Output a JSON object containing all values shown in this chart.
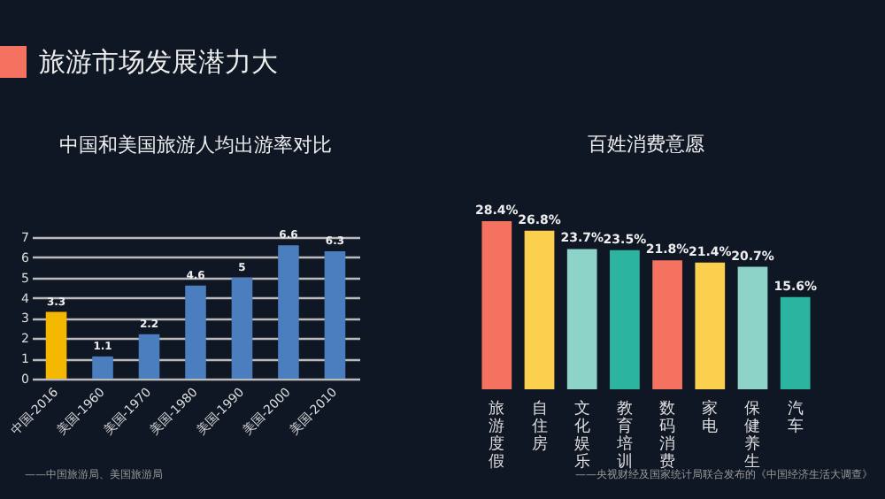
{
  "chart_data": [
    {
      "type": "other",
      "title": "旅游市场发展潜力大"
    },
    {
      "type": "bar",
      "title": "中国和美国旅游人均出游率对比",
      "categories": [
        "中国-2016",
        "美国-1960",
        "美国-1970",
        "美国-1980",
        "美国-1990",
        "美国-2000",
        "美国-2010"
      ],
      "values": [
        3.3,
        1.1,
        2.2,
        4.6,
        5,
        6.6,
        6.3
      ],
      "colors": [
        "#f5b800",
        "#4a7ebf",
        "#4a7ebf",
        "#4a7ebf",
        "#4a7ebf",
        "#4a7ebf",
        "#4a7ebf"
      ],
      "ylim": [
        0,
        7
      ],
      "yticks": [
        0,
        1,
        2,
        3,
        4,
        5,
        6,
        7
      ],
      "grid": "y",
      "data_labels": true,
      "annotations": [
        "——中国旅游局、美国旅游局"
      ]
    },
    {
      "type": "bar",
      "title": "百姓消费意愿",
      "categories": [
        "旅游度假",
        "自住房",
        "文化娱乐",
        "教育培训",
        "数码消费",
        "家电",
        "保健养生",
        "汽车"
      ],
      "values": [
        28.4,
        26.8,
        23.7,
        23.5,
        21.8,
        21.4,
        20.7,
        15.6
      ],
      "value_labels": [
        "28.4%",
        "26.8%",
        "23.7%",
        "23.5%",
        "21.8%",
        "21.4%",
        "20.7%",
        "15.6%"
      ],
      "colors": [
        "#f4725f",
        "#fcd04f",
        "#8dd3c8",
        "#2bb5a0",
        "#f4725f",
        "#fcd04f",
        "#8dd3c8",
        "#2bb5a0"
      ],
      "annotations": [
        "——央视财经及国家统计局联合发布的《中国经济生活大调查》"
      ]
    }
  ]
}
